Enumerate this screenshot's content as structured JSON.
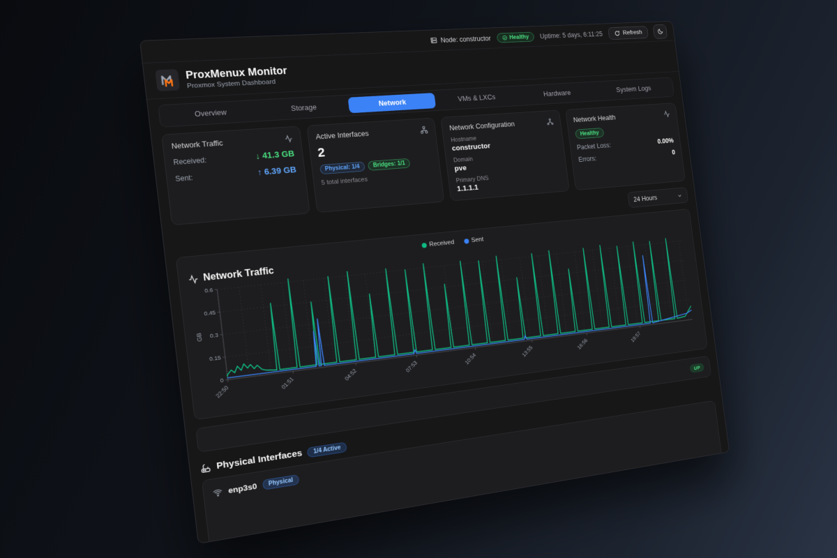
{
  "topbar": {
    "node_label": "Node: constructor",
    "health_badge": "Healthy",
    "uptime": "Uptime: 5 days, 6:11:25",
    "refresh_label": "Refresh"
  },
  "header": {
    "title": "ProxMenux Monitor",
    "subtitle": "Proxmox System Dashboard"
  },
  "tabs": [
    {
      "label": "Overview",
      "active": false
    },
    {
      "label": "Storage",
      "active": false
    },
    {
      "label": "Network",
      "active": true
    },
    {
      "label": "VMs & LXCs",
      "active": false
    },
    {
      "label": "Hardware",
      "active": false
    },
    {
      "label": "System Logs",
      "active": false
    }
  ],
  "cards": {
    "traffic": {
      "title": "Network Traffic",
      "received_label": "Received:",
      "received_value": "↓ 41.3 GB",
      "sent_label": "Sent:",
      "sent_value": "↑ 6.39 GB"
    },
    "interfaces": {
      "title": "Active Interfaces",
      "count": "2",
      "badge_physical": "Physical: 1/4",
      "badge_bridges": "Bridges: 1/1",
      "total": "5 total interfaces"
    },
    "config": {
      "title": "Network Configuration",
      "hostname_label": "Hostname",
      "hostname": "constructor",
      "domain_label": "Domain",
      "domain": "pve",
      "dns_label": "Primary DNS",
      "dns": "1.1.1.1"
    },
    "health": {
      "title": "Network Health",
      "status": "Healthy",
      "packet_loss_label": "Packet Loss:",
      "packet_loss": "0.00%",
      "errors_label": "Errors:",
      "errors": "0"
    }
  },
  "time_range": "24 Hours",
  "chart_title": "Network Traffic",
  "chart_data": {
    "type": "line",
    "title": "Network Traffic",
    "ylabel": "GB",
    "ylim": [
      0,
      0.6
    ],
    "yticks": [
      0,
      0.15,
      0.3,
      0.45,
      0.6
    ],
    "x_hours_span": 24.2,
    "grid": "dotted",
    "legend_position": "top-center",
    "xticks": [
      {
        "h": 0,
        "label": "22:50"
      },
      {
        "h": 3.0167,
        "label": "01:51"
      },
      {
        "h": 6.0333,
        "label": "04:52"
      },
      {
        "h": 9.05,
        "label": "07:53"
      },
      {
        "h": 12.0667,
        "label": "10:54"
      },
      {
        "h": 15.0833,
        "label": "13:55"
      },
      {
        "h": 18.1,
        "label": "16:56"
      },
      {
        "h": 21.1167,
        "label": "19:57"
      }
    ],
    "legend": [
      {
        "name": "Received",
        "color": "#10b981"
      },
      {
        "name": "Sent",
        "color": "#3b82f6"
      }
    ],
    "series": [
      {
        "name": "Received",
        "color": "#10b981",
        "baseline": 0.022,
        "extra": [
          [
            0,
            0.03
          ],
          [
            0.2,
            0.06
          ],
          [
            0.35,
            0.04
          ],
          [
            0.5,
            0.08
          ],
          [
            0.65,
            0.05
          ],
          [
            0.8,
            0.09
          ],
          [
            0.95,
            0.06
          ],
          [
            1.1,
            0.08
          ],
          [
            1.25,
            0.05
          ],
          [
            1.4,
            0.07
          ],
          [
            1.6,
            0.04
          ],
          [
            1.8,
            0.03
          ],
          [
            23.8,
            0.03
          ],
          [
            24.2,
            0.1
          ]
        ],
        "spikes": [
          [
            2.35,
            0.47
          ],
          [
            3.3,
            0.62
          ],
          [
            4.25,
            0.45
          ],
          [
            5.2,
            0.61
          ],
          [
            6.15,
            0.63
          ],
          [
            7.1,
            0.46
          ],
          [
            8.05,
            0.62
          ],
          [
            9.0,
            0.6
          ],
          [
            9.95,
            0.63
          ],
          [
            10.9,
            0.47
          ],
          [
            11.85,
            0.62
          ],
          [
            12.8,
            0.61
          ],
          [
            13.75,
            0.63
          ],
          [
            14.7,
            0.46
          ],
          [
            15.65,
            0.62
          ],
          [
            16.6,
            0.63
          ],
          [
            17.55,
            0.48
          ],
          [
            18.5,
            0.62
          ],
          [
            19.45,
            0.63
          ],
          [
            20.4,
            0.61
          ],
          [
            21.35,
            0.63
          ],
          [
            22.3,
            0.62
          ],
          [
            23.25,
            0.63
          ]
        ]
      },
      {
        "name": "Sent",
        "color": "#3b82f6",
        "baseline": 0.012,
        "extra": [
          [
            23.9,
            0.05
          ],
          [
            24.2,
            0.07
          ]
        ],
        "spikes": [
          [
            4.2,
            0.25
          ],
          [
            4.45,
            0.33
          ],
          [
            9.0,
            0.04
          ],
          [
            14.75,
            0.04
          ],
          [
            21.8,
            0.52
          ]
        ]
      }
    ]
  },
  "bridge_row": {
    "status": "UP"
  },
  "physical_section": {
    "title": "Physical Interfaces",
    "badge": "1/4 Active",
    "interface": {
      "name": "enp3s0",
      "badge": "Physical"
    }
  },
  "colors": {
    "accent_blue": "#3b82f6",
    "green": "#4ade80",
    "light_blue": "#60a5fa",
    "chart_received": "#10b981",
    "chart_sent": "#3b82f6",
    "logo_orange": "#f97316"
  }
}
